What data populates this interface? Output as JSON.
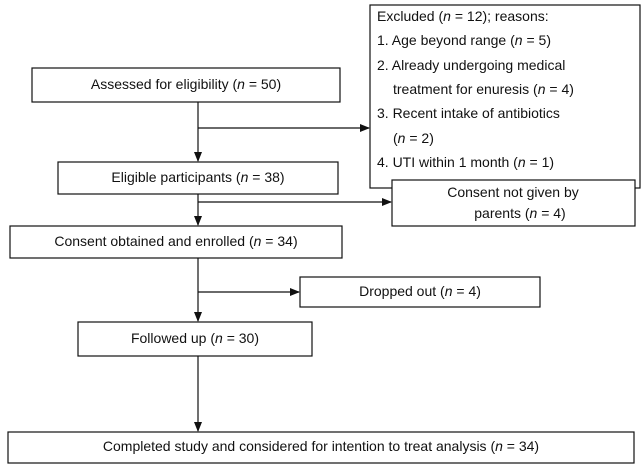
{
  "nodes": [
    {
      "lines": [
        [
          "Assessed for eligibility (",
          "n",
          " = 50)"
        ]
      ]
    },
    {
      "lines": [
        [
          "Excluded (",
          "n",
          " = 12); reasons:"
        ],
        [
          "1. Age beyond range (",
          "n",
          " = 5)"
        ],
        [
          "2. Already undergoing medical"
        ],
        [
          "treatment for enuresis (",
          "n",
          " = 4)"
        ],
        [
          "3. Recent intake of antibiotics"
        ],
        [
          "(",
          "n",
          " = 2)"
        ],
        [
          "4. UTI within 1 month (",
          "n",
          " = 1)"
        ]
      ]
    },
    {
      "lines": [
        [
          "Eligible participants (",
          "n",
          " = 38)"
        ]
      ]
    },
    {
      "lines": [
        [
          "Consent not given by"
        ],
        [
          "parents (",
          "n",
          " = 4)"
        ]
      ]
    },
    {
      "lines": [
        [
          "Consent obtained and enrolled (",
          "n",
          " = 34)"
        ]
      ]
    },
    {
      "lines": [
        [
          "Dropped out (",
          "n",
          " = 4)"
        ]
      ]
    },
    {
      "lines": [
        [
          "Followed up (",
          "n",
          " = 30)"
        ]
      ]
    },
    {
      "lines": [
        [
          "Completed study and considered for intention to treat analysis (",
          "n",
          " = 34)"
        ]
      ]
    }
  ]
}
